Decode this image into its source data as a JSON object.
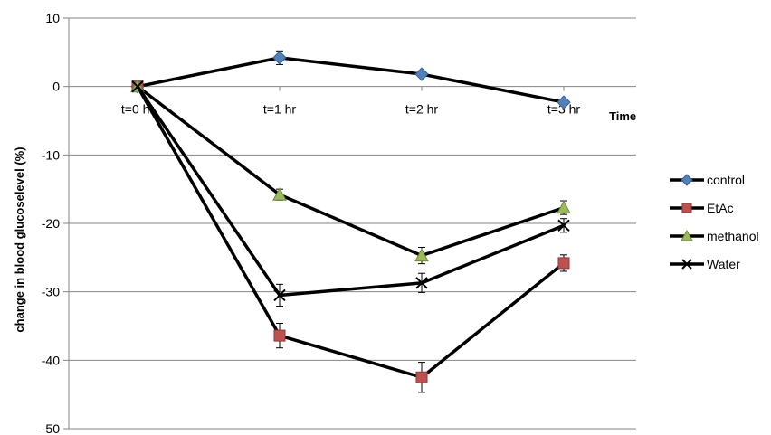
{
  "chart_data": {
    "type": "line",
    "title": "",
    "xlabel": "Time",
    "ylabel": "change in blood glucoselevel (%)",
    "categories": [
      "t=0 hr",
      "t=1 hr",
      "t=2 hr",
      "t=3 hr"
    ],
    "ylim": [
      -50,
      10
    ],
    "yticks": [
      10,
      0,
      -10,
      -20,
      -30,
      -40,
      -50
    ],
    "grid": "horizontal",
    "legend_position": "right",
    "series": [
      {
        "name": "control",
        "marker": "diamond",
        "color": "#4f81bd",
        "values": [
          0,
          4.2,
          1.8,
          -2.3
        ],
        "errors": [
          0,
          1.0,
          0,
          0
        ]
      },
      {
        "name": "EtAc",
        "marker": "square",
        "color": "#c0504d",
        "values": [
          0,
          -36.4,
          -42.5,
          -25.8
        ],
        "errors": [
          0,
          1.8,
          2.2,
          1.2
        ]
      },
      {
        "name": "methanol",
        "marker": "triangle",
        "color": "#9bbb59",
        "values": [
          0,
          -15.8,
          -24.7,
          -17.7
        ],
        "errors": [
          0,
          0.8,
          1.2,
          1.0
        ]
      },
      {
        "name": "Water",
        "marker": "x",
        "color": "#000000",
        "values": [
          0,
          -30.5,
          -28.7,
          -20.3
        ],
        "errors": [
          0,
          1.6,
          1.4,
          1.0
        ]
      }
    ]
  }
}
